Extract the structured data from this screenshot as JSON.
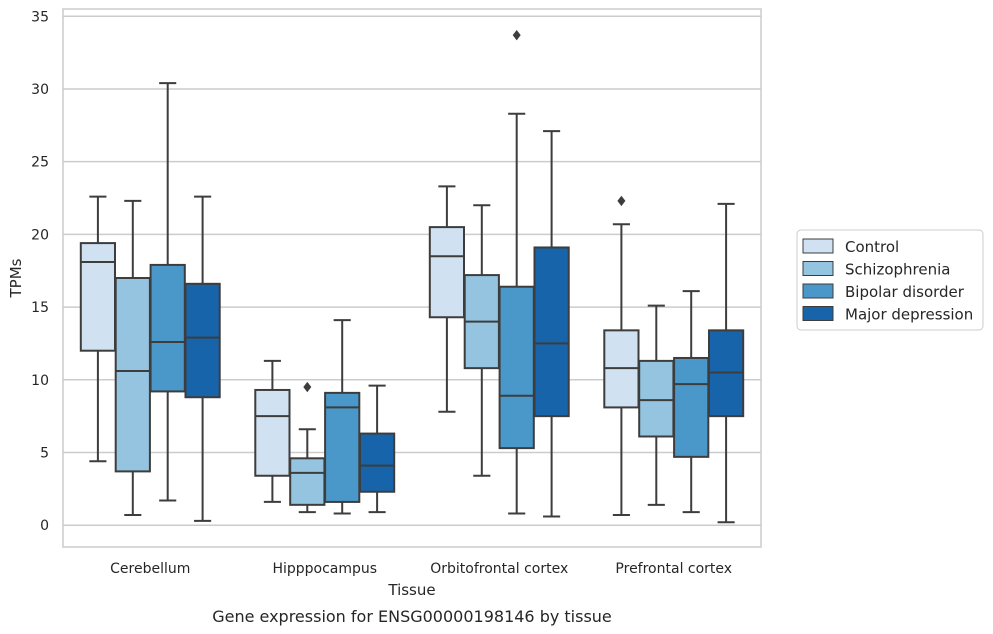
{
  "chart_data": {
    "type": "box",
    "title": "",
    "caption": "Gene expression for ENSG00000198146 by tissue",
    "xlabel": "Tissue",
    "ylabel": "TPMs",
    "ylim": [
      -1.5,
      35.5
    ],
    "yticks": [
      0,
      5,
      10,
      15,
      20,
      25,
      30,
      35
    ],
    "grid": "horizontal",
    "legend_position": "right",
    "categories": [
      "Cerebellum",
      "Hipppocampus",
      "Orbitofrontal cortex",
      "Prefrontal cortex"
    ],
    "series": [
      {
        "name": "Control",
        "color": "#d0e1f2",
        "boxes": [
          {
            "whislo": 4.4,
            "q1": 12.0,
            "med": 18.1,
            "q3": 19.4,
            "whishi": 22.6,
            "fliers": []
          },
          {
            "whislo": 1.6,
            "q1": 3.4,
            "med": 7.5,
            "q3": 9.3,
            "whishi": 11.3,
            "fliers": []
          },
          {
            "whislo": 7.8,
            "q1": 14.3,
            "med": 18.5,
            "q3": 20.5,
            "whishi": 23.3,
            "fliers": []
          },
          {
            "whislo": 0.7,
            "q1": 8.1,
            "med": 10.8,
            "q3": 13.4,
            "whishi": 20.7,
            "fliers": [
              22.3
            ]
          }
        ]
      },
      {
        "name": "Schizophrenia",
        "color": "#94c4df",
        "boxes": [
          {
            "whislo": 0.7,
            "q1": 3.7,
            "med": 10.6,
            "q3": 17.0,
            "whishi": 22.3,
            "fliers": []
          },
          {
            "whislo": 0.9,
            "q1": 1.4,
            "med": 3.6,
            "q3": 4.6,
            "whishi": 6.6,
            "fliers": [
              9.5
            ]
          },
          {
            "whislo": 3.4,
            "q1": 10.8,
            "med": 14.0,
            "q3": 17.2,
            "whishi": 22.0,
            "fliers": []
          },
          {
            "whislo": 1.4,
            "q1": 6.1,
            "med": 8.6,
            "q3": 11.3,
            "whishi": 15.1,
            "fliers": []
          }
        ]
      },
      {
        "name": "Bipolar disorder",
        "color": "#4a98c9",
        "boxes": [
          {
            "whislo": 1.7,
            "q1": 9.2,
            "med": 12.6,
            "q3": 17.9,
            "whishi": 30.4,
            "fliers": []
          },
          {
            "whislo": 0.8,
            "q1": 1.6,
            "med": 8.1,
            "q3": 9.1,
            "whishi": 14.1,
            "fliers": []
          },
          {
            "whislo": 0.8,
            "q1": 5.3,
            "med": 8.9,
            "q3": 16.4,
            "whishi": 28.3,
            "fliers": [
              33.7
            ]
          },
          {
            "whislo": 0.9,
            "q1": 4.7,
            "med": 9.7,
            "q3": 11.5,
            "whishi": 16.1,
            "fliers": []
          }
        ]
      },
      {
        "name": "Major depression",
        "color": "#1764ab",
        "boxes": [
          {
            "whislo": 0.3,
            "q1": 8.8,
            "med": 12.9,
            "q3": 16.6,
            "whishi": 22.6,
            "fliers": []
          },
          {
            "whislo": 0.9,
            "q1": 2.3,
            "med": 4.1,
            "q3": 6.3,
            "whishi": 9.6,
            "fliers": []
          },
          {
            "whislo": 0.6,
            "q1": 7.5,
            "med": 12.5,
            "q3": 19.1,
            "whishi": 27.1,
            "fliers": []
          },
          {
            "whislo": 0.2,
            "q1": 7.5,
            "med": 10.5,
            "q3": 13.4,
            "whishi": 22.1,
            "fliers": []
          }
        ]
      }
    ]
  }
}
